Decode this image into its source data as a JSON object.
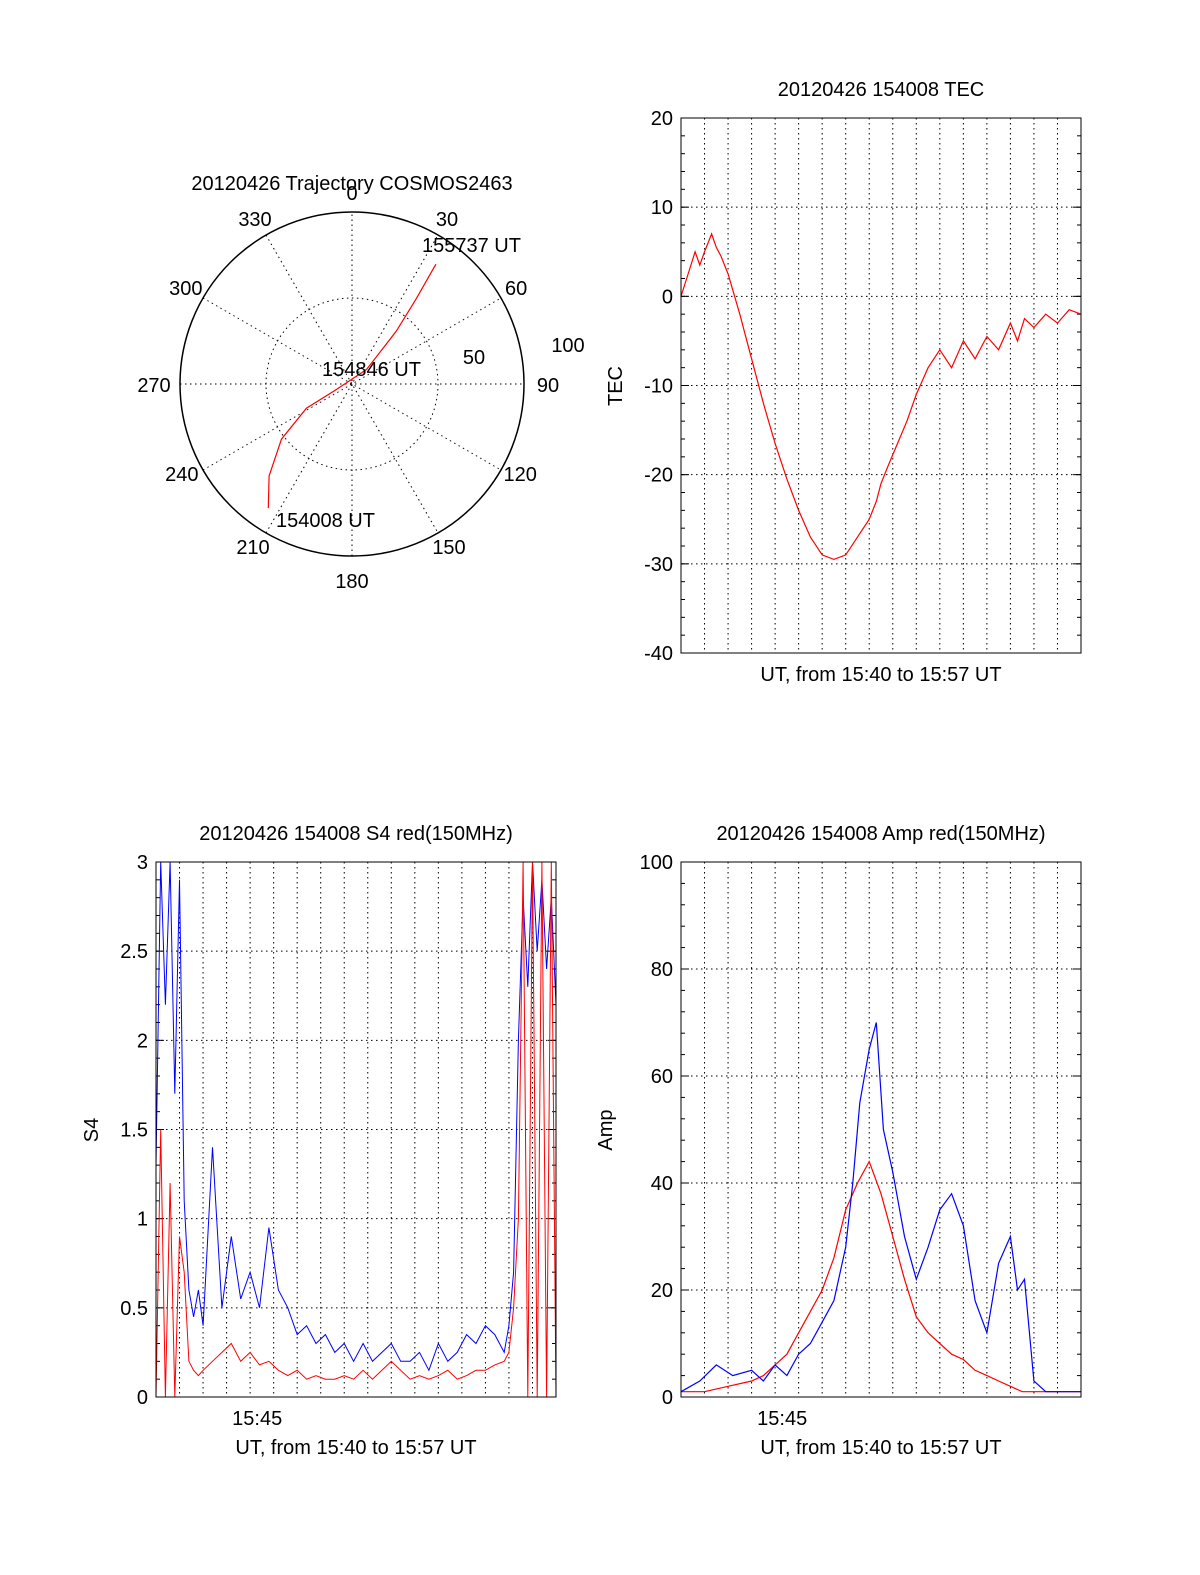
{
  "figure": {
    "background": "#ffffff",
    "colors": {
      "red": "#ff0000",
      "blue": "#0000ff",
      "axes": "#000000"
    }
  },
  "chart_data": [
    {
      "type": "polar",
      "title": "20120426 Trajectory COSMOS2463",
      "angle_labels": [
        "0",
        "30",
        "60",
        "90",
        "120",
        "150",
        "180",
        "210",
        "240",
        "270",
        "300",
        "330"
      ],
      "radial_labels": [
        "50",
        "100"
      ],
      "series": [
        {
          "color": "#ff0000",
          "points": [
            [
              214,
              87
            ],
            [
              222,
              72
            ],
            [
              232,
              52
            ],
            [
              242,
              30
            ],
            [
              250,
              10
            ],
            [
              45,
              12
            ],
            [
              40,
              40
            ],
            [
              37,
              62
            ],
            [
              35,
              85
            ]
          ]
        }
      ],
      "annotations": [
        "155737 UT",
        "154846 UT",
        "154008 UT"
      ]
    },
    {
      "type": "line",
      "title": "20120426 154008 TEC",
      "xlabel": "UT, from 15:40 to 15:57 UT",
      "ylabel": "TEC",
      "ylim": [
        -40,
        20
      ],
      "xlim": [
        0,
        17
      ],
      "yticks": [
        "20",
        "10",
        "0",
        "-10",
        "-20",
        "-30",
        "-40"
      ],
      "series": [
        {
          "color": "#ff0000",
          "x": [
            0,
            0.3,
            0.6,
            0.8,
            1.0,
            1.15,
            1.3,
            1.5,
            1.7,
            2.0,
            2.5,
            3.0,
            3.5,
            4.0,
            4.5,
            5.0,
            5.5,
            6.0,
            6.5,
            7.0,
            7.5,
            8.0,
            8.3,
            8.5,
            8.8,
            9.2,
            9.6,
            10.0,
            10.5,
            11.0,
            11.5,
            12.0,
            12.5,
            13.0,
            13.5,
            14.0,
            14.3,
            14.6,
            15.0,
            15.5,
            16.0,
            16.5,
            17.0
          ],
          "y": [
            0,
            2.5,
            5,
            3.5,
            5,
            6,
            7,
            5.5,
            4.5,
            2.5,
            -2,
            -7,
            -12,
            -16.5,
            -20.5,
            -24,
            -27,
            -29,
            -29.5,
            -29,
            -27,
            -25,
            -23,
            -21,
            -19,
            -16.5,
            -14,
            -11,
            -8,
            -6,
            -8,
            -5,
            -7,
            -4.5,
            -6,
            -3,
            -5,
            -2.5,
            -3.5,
            -2,
            -3,
            -1.5,
            -2
          ]
        }
      ]
    },
    {
      "type": "line",
      "title": "20120426 154008 S4 red(150MHz)",
      "xlabel": "UT, from 15:40 to 15:57 UT",
      "ylabel": "S4",
      "ylim": [
        0,
        3
      ],
      "xlim": [
        0,
        17
      ],
      "yticks": [
        "3",
        "2.5",
        "2",
        "1.5",
        "1",
        "0.5",
        "0"
      ],
      "xticks": [
        {
          "value": 4.3,
          "label": "15:45"
        }
      ],
      "series": [
        {
          "color": "#0000ff",
          "x": [
            0,
            0.2,
            0.4,
            0.6,
            0.8,
            1.0,
            1.2,
            1.4,
            1.6,
            1.8,
            2.0,
            2.4,
            2.8,
            3.2,
            3.6,
            4.0,
            4.4,
            4.8,
            5.2,
            5.6,
            6.0,
            6.4,
            6.8,
            7.2,
            7.6,
            8.0,
            8.4,
            8.8,
            9.2,
            9.6,
            10.0,
            10.4,
            10.8,
            11.2,
            11.6,
            12.0,
            12.4,
            12.8,
            13.2,
            13.6,
            14.0,
            14.4,
            14.8,
            15.0,
            15.2,
            15.4,
            15.6,
            15.8,
            16.0,
            16.2,
            16.4,
            16.6,
            16.8,
            17.0
          ],
          "y": [
            1.3,
            3.0,
            2.2,
            3.0,
            1.7,
            2.9,
            1.1,
            0.6,
            0.45,
            0.6,
            0.4,
            1.4,
            0.5,
            0.9,
            0.55,
            0.7,
            0.5,
            0.95,
            0.6,
            0.5,
            0.35,
            0.4,
            0.3,
            0.35,
            0.25,
            0.3,
            0.2,
            0.3,
            0.2,
            0.25,
            0.3,
            0.2,
            0.2,
            0.25,
            0.15,
            0.3,
            0.2,
            0.25,
            0.35,
            0.3,
            0.4,
            0.35,
            0.25,
            0.4,
            0.7,
            2.0,
            2.8,
            2.3,
            3.0,
            2.5,
            2.9,
            2.4,
            2.8,
            2.2
          ]
        },
        {
          "color": "#ff0000",
          "x": [
            0,
            0.2,
            0.4,
            0.6,
            0.8,
            1.0,
            1.2,
            1.4,
            1.6,
            1.8,
            2.0,
            2.4,
            2.8,
            3.2,
            3.6,
            4.0,
            4.4,
            4.8,
            5.2,
            5.6,
            6.0,
            6.4,
            6.8,
            7.2,
            7.6,
            8.0,
            8.4,
            8.8,
            9.2,
            9.6,
            10.0,
            10.4,
            10.8,
            11.2,
            11.6,
            12.0,
            12.4,
            12.8,
            13.2,
            13.6,
            14.0,
            14.4,
            14.8,
            15.0,
            15.2,
            15.4,
            15.6,
            15.8,
            16.0,
            16.2,
            16.4,
            16.6,
            16.8,
            17.0
          ],
          "y": [
            0.0,
            1.5,
            0.0,
            1.2,
            0.0,
            0.9,
            0.7,
            0.2,
            0.15,
            0.12,
            0.15,
            0.2,
            0.25,
            0.3,
            0.2,
            0.25,
            0.18,
            0.2,
            0.15,
            0.12,
            0.15,
            0.1,
            0.12,
            0.1,
            0.1,
            0.12,
            0.1,
            0.15,
            0.1,
            0.15,
            0.2,
            0.15,
            0.1,
            0.12,
            0.1,
            0.12,
            0.15,
            0.1,
            0.12,
            0.15,
            0.15,
            0.18,
            0.2,
            0.25,
            0.5,
            1.0,
            3.0,
            0.0,
            3.0,
            0.0,
            3.0,
            0.0,
            3.0,
            0.0
          ]
        }
      ]
    },
    {
      "type": "line",
      "title": "20120426 154008 Amp red(150MHz)",
      "xlabel": "UT, from 15:40 to 15:57 UT",
      "ylabel": "Amp",
      "ylim": [
        0,
        100
      ],
      "xlim": [
        0,
        17
      ],
      "yticks": [
        "100",
        "80",
        "60",
        "40",
        "20",
        "0"
      ],
      "xticks": [
        {
          "value": 4.3,
          "label": "15:45"
        }
      ],
      "series": [
        {
          "color": "#ff0000",
          "x": [
            0,
            1,
            2,
            3,
            3.5,
            4,
            4.5,
            5,
            5.5,
            6,
            6.5,
            7,
            7.5,
            8,
            8.5,
            9,
            9.5,
            10,
            10.5,
            11,
            11.5,
            12,
            12.5,
            13,
            13.5,
            14,
            14.5,
            15,
            15.5,
            16,
            16.5,
            17
          ],
          "y": [
            1,
            1,
            2,
            3,
            4,
            6,
            8,
            12,
            16,
            20,
            26,
            35,
            40,
            44,
            38,
            30,
            22,
            15,
            12,
            10,
            8,
            7,
            5,
            4,
            3,
            2,
            1,
            1,
            1,
            1,
            1,
            1
          ]
        },
        {
          "color": "#0000ff",
          "x": [
            0,
            0.8,
            1.5,
            2.2,
            3,
            3.5,
            4,
            4.5,
            5,
            5.5,
            6,
            6.5,
            7,
            7.3,
            7.6,
            8,
            8.3,
            8.6,
            9,
            9.5,
            10,
            10.5,
            11,
            11.5,
            12,
            12.5,
            13,
            13.5,
            14,
            14.3,
            14.6,
            15,
            15.5,
            16,
            16.5,
            17
          ],
          "y": [
            1,
            3,
            6,
            4,
            5,
            3,
            6,
            4,
            8,
            10,
            14,
            18,
            28,
            40,
            55,
            65,
            70,
            50,
            42,
            30,
            22,
            28,
            35,
            38,
            32,
            18,
            12,
            25,
            30,
            20,
            22,
            3,
            1,
            1,
            1,
            1
          ]
        }
      ]
    }
  ]
}
